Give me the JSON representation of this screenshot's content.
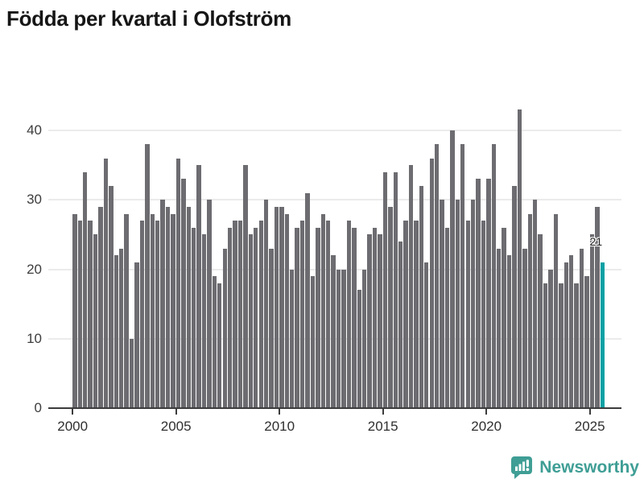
{
  "title": "Födda per kvartal i Olofström",
  "annotation": {
    "last_value_label": "21"
  },
  "footer": {
    "brand": "Newsworthy"
  },
  "colors": {
    "bar": "#6c6c71",
    "highlight": "#0aa1a4",
    "brand_teal": "#3f9e95",
    "gridline": "#ebebeb",
    "axis_line": "#3c3c3c",
    "title_text": "#161616",
    "axis_text": "#2f2f2f"
  },
  "chart_data": {
    "type": "bar",
    "title": "Födda per kvartal i Olofström",
    "xlabel": "",
    "ylabel": "",
    "frequency": "quarterly",
    "x_start": "2000-Q1",
    "x_end": "2025-Q3",
    "x_ticks": [
      2000,
      2005,
      2010,
      2015,
      2020,
      2025
    ],
    "y_ticks": [
      0,
      10,
      20,
      30,
      40
    ],
    "ylim": [
      0,
      45
    ],
    "grid": "horizontal",
    "legend": "none",
    "highlight_last_bar": true,
    "last_bar_label": "21",
    "values": [
      28,
      27,
      34,
      27,
      25,
      29,
      36,
      32,
      22,
      23,
      28,
      10,
      21,
      27,
      38,
      28,
      27,
      30,
      29,
      28,
      36,
      33,
      29,
      26,
      35,
      25,
      30,
      19,
      18,
      23,
      26,
      27,
      27,
      35,
      25,
      26,
      27,
      30,
      23,
      29,
      29,
      28,
      20,
      26,
      27,
      31,
      19,
      26,
      28,
      27,
      22,
      20,
      20,
      27,
      26,
      17,
      20,
      25,
      26,
      25,
      34,
      29,
      34,
      24,
      27,
      35,
      27,
      32,
      21,
      36,
      38,
      30,
      26,
      40,
      30,
      38,
      27,
      30,
      33,
      27,
      33,
      38,
      23,
      26,
      22,
      32,
      43,
      23,
      28,
      30,
      25,
      18,
      20,
      28,
      18,
      21,
      22,
      18,
      23,
      19,
      25,
      29,
      21
    ]
  }
}
